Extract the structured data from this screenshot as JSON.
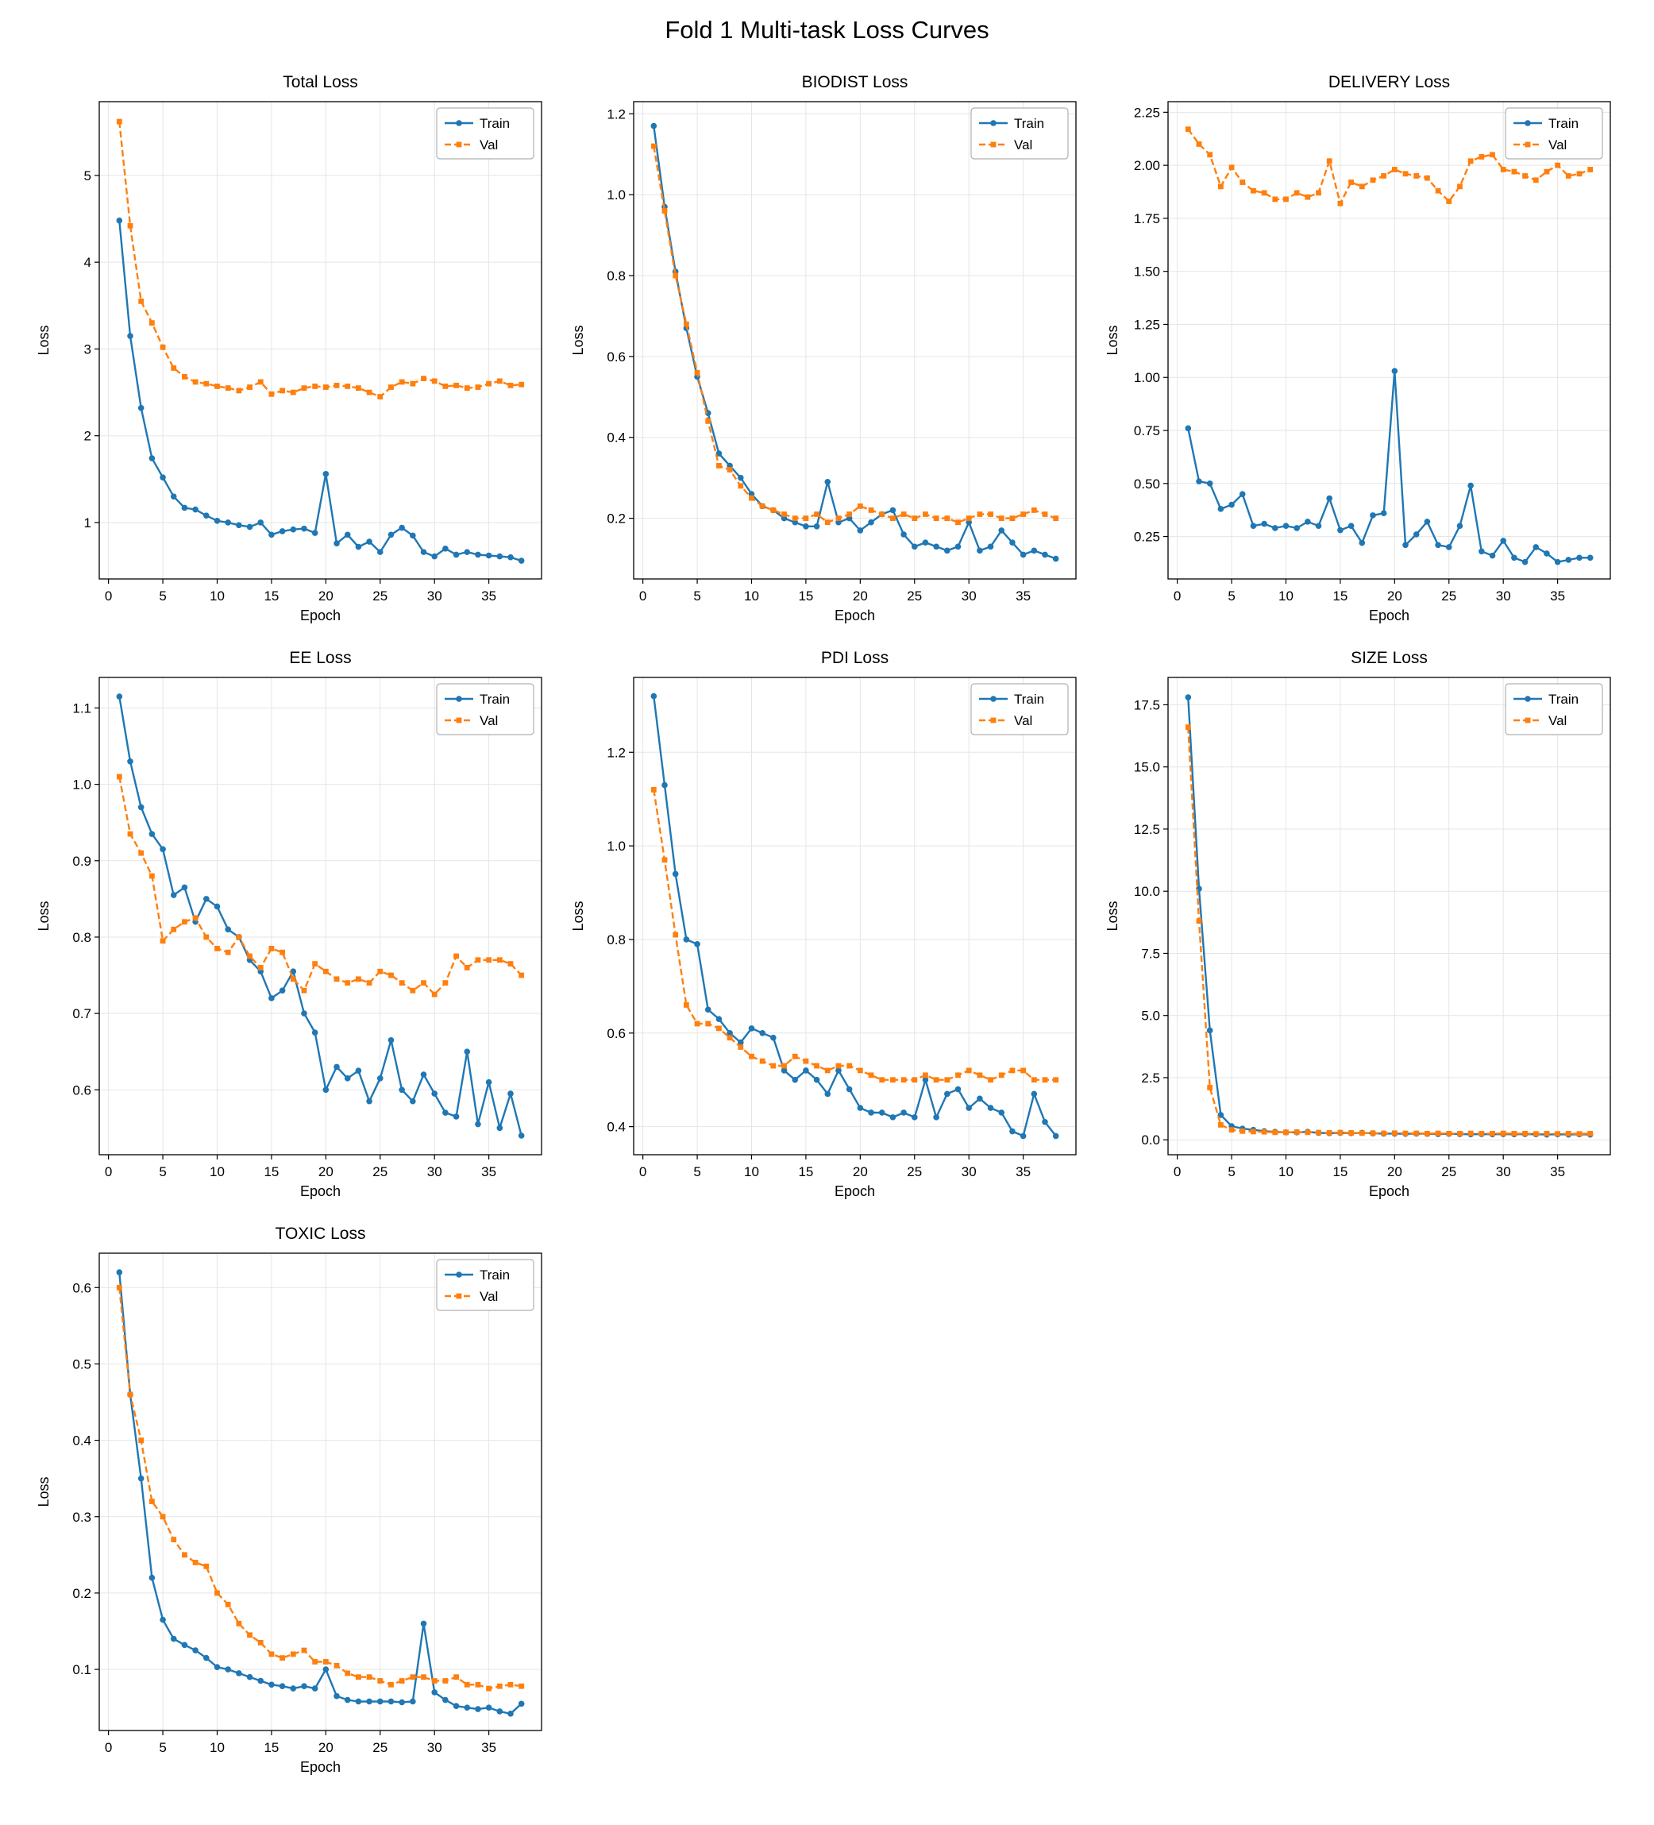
{
  "figure": {
    "title": "Fold 1 Multi-task Loss Curves"
  },
  "colors": {
    "train": "#1f77b4",
    "val": "#ff7f0e",
    "grid": "#e5e5e5",
    "spine": "#000000",
    "legend_border": "#b0b0b0"
  },
  "axis": {
    "xlabel": "Epoch",
    "ylabel": "Loss",
    "x_start": 1,
    "xlim": [
      -0.85,
      39.85
    ],
    "xticks": [
      0,
      5,
      10,
      15,
      20,
      25,
      30,
      35
    ],
    "xtick_labels": [
      "0",
      "5",
      "10",
      "15",
      "20",
      "25",
      "30",
      "35"
    ]
  },
  "chart_data": [
    {
      "id": "total-loss",
      "type": "line",
      "title": "Total Loss",
      "xlabel": "Epoch",
      "ylabel": "Loss",
      "ylim": [
        0.35,
        5.85
      ],
      "yticks": [
        1,
        2,
        3,
        4,
        5
      ],
      "ytick_labels": [
        "1",
        "2",
        "3",
        "4",
        "5"
      ],
      "legend_position": "upper-right",
      "series": [
        {
          "key": "train",
          "name": "Train",
          "marker": "circle",
          "dashed": false,
          "values": [
            4.48,
            3.15,
            2.32,
            1.74,
            1.52,
            1.3,
            1.17,
            1.15,
            1.08,
            1.02,
            1.0,
            0.97,
            0.95,
            1.0,
            0.86,
            0.9,
            0.92,
            0.93,
            0.88,
            1.56,
            0.76,
            0.86,
            0.72,
            0.78,
            0.66,
            0.86,
            0.94,
            0.85,
            0.66,
            0.61,
            0.7,
            0.63,
            0.66,
            0.63,
            0.62,
            0.61,
            0.6,
            0.56
          ]
        },
        {
          "key": "val",
          "name": "Val",
          "marker": "square",
          "dashed": true,
          "values": [
            5.62,
            4.42,
            3.55,
            3.3,
            3.02,
            2.78,
            2.68,
            2.62,
            2.6,
            2.57,
            2.55,
            2.52,
            2.56,
            2.62,
            2.48,
            2.52,
            2.5,
            2.55,
            2.57,
            2.56,
            2.58,
            2.57,
            2.55,
            2.5,
            2.45,
            2.56,
            2.62,
            2.6,
            2.66,
            2.63,
            2.57,
            2.58,
            2.55,
            2.56,
            2.6,
            2.63,
            2.58,
            2.59
          ]
        }
      ]
    },
    {
      "id": "biodist-loss",
      "type": "line",
      "title": "BIODIST Loss",
      "xlabel": "Epoch",
      "ylabel": "Loss",
      "ylim": [
        0.05,
        1.23
      ],
      "yticks": [
        0.2,
        0.4,
        0.6,
        0.8,
        1.0,
        1.2
      ],
      "ytick_labels": [
        "0.2",
        "0.4",
        "0.6",
        "0.8",
        "1.0",
        "1.2"
      ],
      "legend_position": "upper-right",
      "series": [
        {
          "key": "train",
          "name": "Train",
          "marker": "circle",
          "dashed": false,
          "values": [
            1.17,
            0.97,
            0.81,
            0.67,
            0.55,
            0.46,
            0.36,
            0.33,
            0.3,
            0.26,
            0.23,
            0.22,
            0.2,
            0.19,
            0.18,
            0.18,
            0.29,
            0.19,
            0.2,
            0.17,
            0.19,
            0.21,
            0.22,
            0.16,
            0.13,
            0.14,
            0.13,
            0.12,
            0.13,
            0.19,
            0.12,
            0.13,
            0.17,
            0.14,
            0.11,
            0.12,
            0.11,
            0.1
          ]
        },
        {
          "key": "val",
          "name": "Val",
          "marker": "square",
          "dashed": true,
          "values": [
            1.12,
            0.96,
            0.8,
            0.68,
            0.56,
            0.44,
            0.33,
            0.32,
            0.28,
            0.25,
            0.23,
            0.22,
            0.21,
            0.2,
            0.2,
            0.21,
            0.19,
            0.2,
            0.21,
            0.23,
            0.22,
            0.21,
            0.2,
            0.21,
            0.2,
            0.21,
            0.2,
            0.2,
            0.19,
            0.2,
            0.21,
            0.21,
            0.2,
            0.2,
            0.21,
            0.22,
            0.21,
            0.2
          ]
        }
      ]
    },
    {
      "id": "delivery-loss",
      "type": "line",
      "title": "DELIVERY Loss",
      "xlabel": "Epoch",
      "ylabel": "Loss",
      "ylim": [
        0.05,
        2.3
      ],
      "yticks": [
        0.25,
        0.5,
        0.75,
        1.0,
        1.25,
        1.5,
        1.75,
        2.0,
        2.25
      ],
      "ytick_labels": [
        "0.25",
        "0.50",
        "0.75",
        "1.00",
        "1.25",
        "1.50",
        "1.75",
        "2.00",
        "2.25"
      ],
      "legend_position": "upper-right",
      "series": [
        {
          "key": "train",
          "name": "Train",
          "marker": "circle",
          "dashed": false,
          "values": [
            0.76,
            0.51,
            0.5,
            0.38,
            0.4,
            0.45,
            0.3,
            0.31,
            0.29,
            0.3,
            0.29,
            0.32,
            0.3,
            0.43,
            0.28,
            0.3,
            0.22,
            0.35,
            0.36,
            1.03,
            0.21,
            0.26,
            0.32,
            0.21,
            0.2,
            0.3,
            0.49,
            0.18,
            0.16,
            0.23,
            0.15,
            0.13,
            0.2,
            0.17,
            0.13,
            0.14,
            0.15,
            0.15
          ]
        },
        {
          "key": "val",
          "name": "Val",
          "marker": "square",
          "dashed": true,
          "values": [
            2.17,
            2.1,
            2.05,
            1.9,
            1.99,
            1.92,
            1.88,
            1.87,
            1.84,
            1.84,
            1.87,
            1.85,
            1.87,
            2.02,
            1.82,
            1.92,
            1.9,
            1.93,
            1.95,
            1.98,
            1.96,
            1.95,
            1.94,
            1.88,
            1.83,
            1.9,
            2.02,
            2.04,
            2.05,
            1.98,
            1.97,
            1.95,
            1.93,
            1.97,
            2.0,
            1.95,
            1.96,
            1.98
          ]
        }
      ]
    },
    {
      "id": "ee-loss",
      "type": "line",
      "title": "EE Loss",
      "xlabel": "Epoch",
      "ylabel": "Loss",
      "ylim": [
        0.515,
        1.14
      ],
      "yticks": [
        0.6,
        0.7,
        0.8,
        0.9,
        1.0,
        1.1
      ],
      "ytick_labels": [
        "0.6",
        "0.7",
        "0.8",
        "0.9",
        "1.0",
        "1.1"
      ],
      "legend_position": "upper-right",
      "series": [
        {
          "key": "train",
          "name": "Train",
          "marker": "circle",
          "dashed": false,
          "values": [
            1.115,
            1.03,
            0.97,
            0.935,
            0.915,
            0.855,
            0.865,
            0.82,
            0.85,
            0.84,
            0.81,
            0.8,
            0.77,
            0.755,
            0.72,
            0.73,
            0.755,
            0.7,
            0.675,
            0.6,
            0.63,
            0.615,
            0.625,
            0.585,
            0.615,
            0.665,
            0.6,
            0.585,
            0.62,
            0.595,
            0.57,
            0.565,
            0.65,
            0.555,
            0.61,
            0.55,
            0.595,
            0.54
          ]
        },
        {
          "key": "val",
          "name": "Val",
          "marker": "square",
          "dashed": true,
          "values": [
            1.01,
            0.935,
            0.91,
            0.88,
            0.795,
            0.81,
            0.82,
            0.825,
            0.8,
            0.785,
            0.78,
            0.8,
            0.775,
            0.76,
            0.785,
            0.78,
            0.745,
            0.73,
            0.765,
            0.755,
            0.745,
            0.74,
            0.745,
            0.74,
            0.755,
            0.75,
            0.74,
            0.73,
            0.74,
            0.725,
            0.74,
            0.775,
            0.76,
            0.77,
            0.77,
            0.77,
            0.765,
            0.75
          ]
        }
      ]
    },
    {
      "id": "pdi-loss",
      "type": "line",
      "title": "PDI Loss",
      "xlabel": "Epoch",
      "ylabel": "Loss",
      "ylim": [
        0.34,
        1.36
      ],
      "yticks": [
        0.4,
        0.6,
        0.8,
        1.0,
        1.2
      ],
      "ytick_labels": [
        "0.4",
        "0.6",
        "0.8",
        "1.0",
        "1.2"
      ],
      "legend_position": "upper-right",
      "series": [
        {
          "key": "train",
          "name": "Train",
          "marker": "circle",
          "dashed": false,
          "values": [
            1.32,
            1.13,
            0.94,
            0.8,
            0.79,
            0.65,
            0.63,
            0.6,
            0.58,
            0.61,
            0.6,
            0.59,
            0.52,
            0.5,
            0.52,
            0.5,
            0.47,
            0.52,
            0.48,
            0.44,
            0.43,
            0.43,
            0.42,
            0.43,
            0.42,
            0.5,
            0.42,
            0.47,
            0.48,
            0.44,
            0.46,
            0.44,
            0.43,
            0.39,
            0.38,
            0.47,
            0.41,
            0.38
          ]
        },
        {
          "key": "val",
          "name": "Val",
          "marker": "square",
          "dashed": true,
          "values": [
            1.12,
            0.97,
            0.81,
            0.66,
            0.62,
            0.62,
            0.61,
            0.59,
            0.57,
            0.55,
            0.54,
            0.53,
            0.53,
            0.55,
            0.54,
            0.53,
            0.52,
            0.53,
            0.53,
            0.52,
            0.51,
            0.5,
            0.5,
            0.5,
            0.5,
            0.51,
            0.5,
            0.5,
            0.51,
            0.52,
            0.51,
            0.5,
            0.51,
            0.52,
            0.52,
            0.5,
            0.5,
            0.5
          ]
        }
      ]
    },
    {
      "id": "size-loss",
      "type": "line",
      "title": "SIZE Loss",
      "xlabel": "Epoch",
      "ylabel": "Loss",
      "ylim": [
        -0.6,
        18.6
      ],
      "yticks": [
        0.0,
        2.5,
        5.0,
        7.5,
        10.0,
        12.5,
        15.0,
        17.5
      ],
      "ytick_labels": [
        "0.0",
        "2.5",
        "5.0",
        "7.5",
        "10.0",
        "12.5",
        "15.0",
        "17.5"
      ],
      "legend_position": "upper-right",
      "series": [
        {
          "key": "train",
          "name": "Train",
          "marker": "circle",
          "dashed": false,
          "values": [
            17.8,
            10.1,
            4.4,
            1.0,
            0.55,
            0.45,
            0.4,
            0.35,
            0.32,
            0.3,
            0.3,
            0.32,
            0.28,
            0.27,
            0.28,
            0.27,
            0.28,
            0.26,
            0.25,
            0.25,
            0.24,
            0.25,
            0.24,
            0.23,
            0.24,
            0.23,
            0.22,
            0.23,
            0.22,
            0.23,
            0.22,
            0.23,
            0.22,
            0.21,
            0.22,
            0.21,
            0.22,
            0.21
          ]
        },
        {
          "key": "val",
          "name": "Val",
          "marker": "square",
          "dashed": true,
          "values": [
            16.6,
            8.8,
            2.1,
            0.6,
            0.4,
            0.35,
            0.33,
            0.32,
            0.3,
            0.3,
            0.31,
            0.3,
            0.29,
            0.28,
            0.29,
            0.28,
            0.27,
            0.27,
            0.26,
            0.27,
            0.26,
            0.26,
            0.25,
            0.26,
            0.25,
            0.25,
            0.26,
            0.25,
            0.25,
            0.26,
            0.25,
            0.25,
            0.24,
            0.25,
            0.24,
            0.25,
            0.24,
            0.25
          ]
        }
      ]
    },
    {
      "id": "toxic-loss",
      "type": "line",
      "title": "TOXIC Loss",
      "xlabel": "Epoch",
      "ylabel": "Loss",
      "ylim": [
        0.02,
        0.645
      ],
      "yticks": [
        0.1,
        0.2,
        0.3,
        0.4,
        0.5,
        0.6
      ],
      "ytick_labels": [
        "0.1",
        "0.2",
        "0.3",
        "0.4",
        "0.5",
        "0.6"
      ],
      "legend_position": "upper-right",
      "series": [
        {
          "key": "train",
          "name": "Train",
          "marker": "circle",
          "dashed": false,
          "values": [
            0.62,
            0.46,
            0.35,
            0.22,
            0.165,
            0.14,
            0.132,
            0.125,
            0.115,
            0.103,
            0.1,
            0.095,
            0.09,
            0.085,
            0.08,
            0.078,
            0.075,
            0.078,
            0.075,
            0.1,
            0.065,
            0.06,
            0.058,
            0.058,
            0.058,
            0.058,
            0.057,
            0.058,
            0.16,
            0.07,
            0.06,
            0.052,
            0.05,
            0.048,
            0.05,
            0.045,
            0.042,
            0.055
          ]
        },
        {
          "key": "val",
          "name": "Val",
          "marker": "square",
          "dashed": true,
          "values": [
            0.6,
            0.46,
            0.4,
            0.32,
            0.3,
            0.27,
            0.25,
            0.24,
            0.235,
            0.2,
            0.185,
            0.16,
            0.145,
            0.135,
            0.12,
            0.115,
            0.12,
            0.125,
            0.11,
            0.11,
            0.105,
            0.095,
            0.09,
            0.09,
            0.085,
            0.08,
            0.085,
            0.09,
            0.09,
            0.085,
            0.085,
            0.09,
            0.08,
            0.08,
            0.075,
            0.078,
            0.08,
            0.078
          ]
        }
      ]
    }
  ]
}
